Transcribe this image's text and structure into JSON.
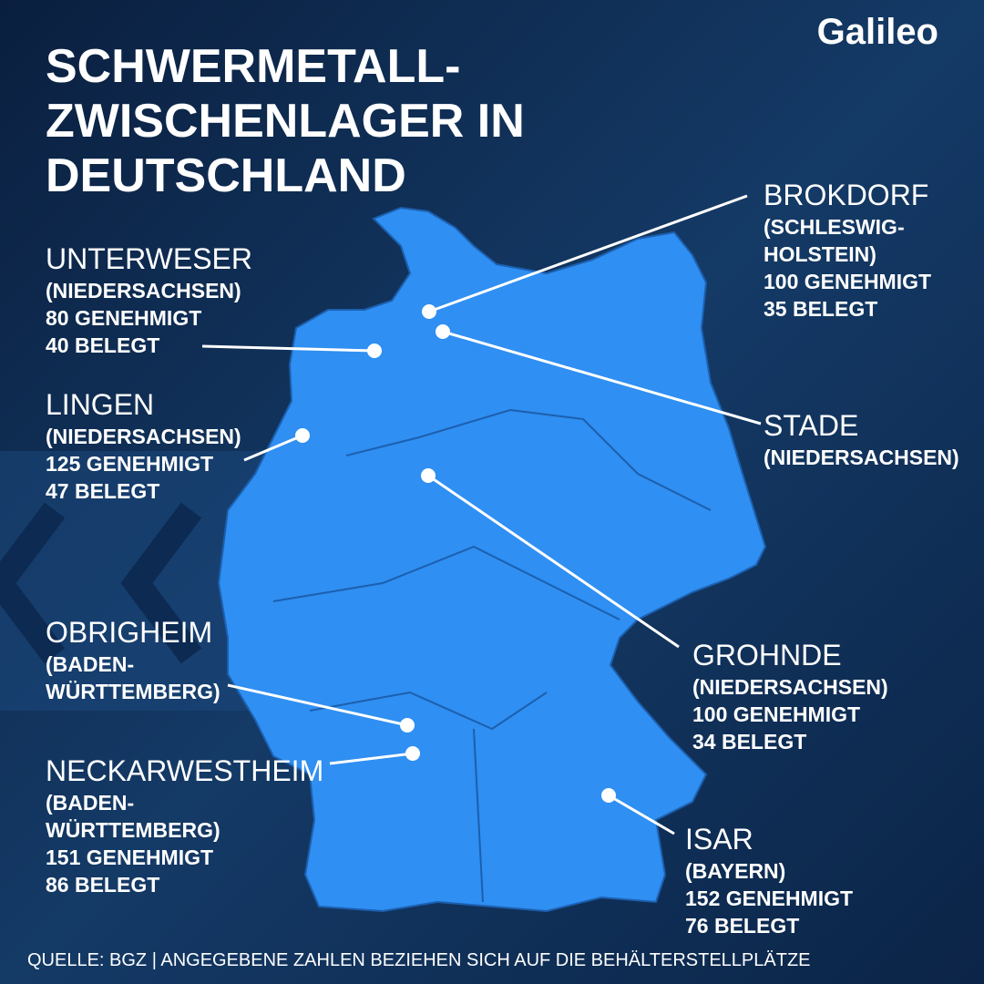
{
  "header": {
    "title_lines": [
      "SCHWERMETALL-",
      "ZWISCHENLAGER IN",
      "DEUTSCHLAND"
    ],
    "logo": "Galileo"
  },
  "sites": [
    {
      "lines": [
        "UNTERWESER",
        "(NIEDERSACHSEN)",
        "80 GENEHMIGT",
        "40 BELEGT"
      ]
    },
    {
      "lines": [
        "LINGEN",
        "(NIEDERSACHSEN)",
        "125 GENEHMIGT",
        "47 BELEGT"
      ]
    },
    {
      "lines": [
        "OBRIGHEIM",
        "(BADEN-",
        "WÜRTTEMBERG)"
      ]
    },
    {
      "lines": [
        "NECKARWESTHEIM",
        "(BADEN-",
        "WÜRTTEMBERG)",
        "151 GENEHMIGT",
        "86 BELEGT"
      ]
    },
    {
      "lines": [
        "BROKDORF",
        "(SCHLESWIG-",
        "HOLSTEIN)",
        "100 GENEHMIGT",
        "35 BELEGT"
      ]
    },
    {
      "lines": [
        "STADE",
        "(NIEDERSACHSEN)"
      ]
    },
    {
      "lines": [
        "GROHNDE",
        "(NIEDERSACHSEN)",
        "100 GENEHMIGT",
        "34 BELEGT"
      ]
    },
    {
      "lines": [
        "ISAR",
        "(BAYERN)",
        "152 GENEHMIGT",
        "76 BELEGT"
      ]
    }
  ],
  "footer": {
    "source": "QUELLE: BGZ | ANGEGEBENE ZAHLEN BEZIEHEN SICH AUF DIE BEHÄLTERSTELLPLÄTZE"
  }
}
